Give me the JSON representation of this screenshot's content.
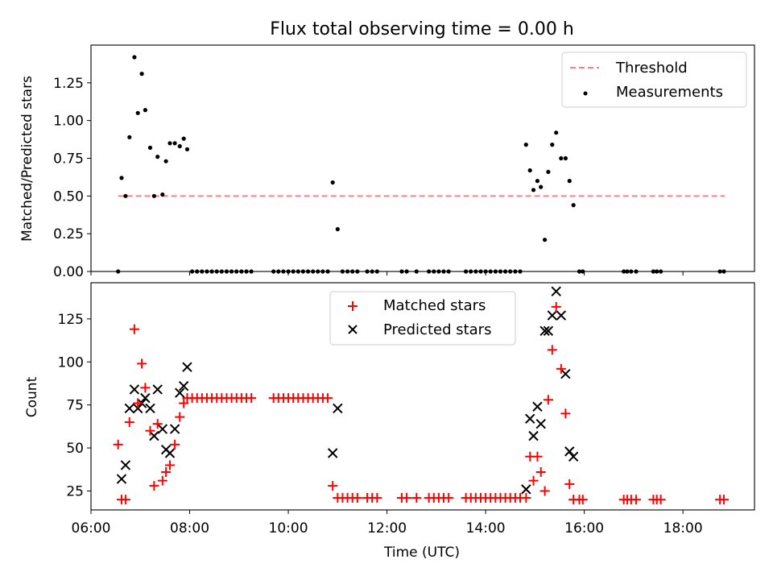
{
  "chart_data": [
    {
      "type": "scatter",
      "title": "Flux total observing time = 0.00 h",
      "xlabel": "",
      "ylabel": "Matched/Predicted stars",
      "xlim": [
        6.0,
        19.45
      ],
      "ylim": [
        0,
        1.5
      ],
      "yticks": [
        0.0,
        0.25,
        0.5,
        0.75,
        1.0,
        1.25
      ],
      "ytick_labels": [
        "0.00",
        "0.25",
        "0.50",
        "0.75",
        "1.00",
        "1.25"
      ],
      "xticks": [
        6,
        8,
        10,
        12,
        14,
        16,
        18
      ],
      "legend_position": "top-right",
      "threshold": {
        "name": "Threshold",
        "value": 0.5,
        "x": [
          6.55,
          18.85
        ],
        "color": "#ff7f7f",
        "style": "dashed"
      },
      "series": [
        {
          "name": "Measurements",
          "marker": "dot",
          "color": "#000000",
          "points": [
            [
              6.55,
              0.0
            ],
            [
              6.62,
              0.62
            ],
            [
              6.7,
              0.5
            ],
            [
              6.78,
              0.89
            ],
            [
              6.88,
              1.42
            ],
            [
              6.95,
              1.05
            ],
            [
              7.03,
              1.31
            ],
            [
              7.1,
              1.07
            ],
            [
              7.2,
              0.82
            ],
            [
              7.28,
              0.5
            ],
            [
              7.35,
              0.76
            ],
            [
              7.45,
              0.51
            ],
            [
              7.52,
              0.73
            ],
            [
              7.6,
              0.85
            ],
            [
              7.7,
              0.85
            ],
            [
              7.8,
              0.83
            ],
            [
              7.88,
              0.88
            ],
            [
              7.95,
              0.81
            ],
            [
              8.05,
              0.0
            ],
            [
              8.15,
              0.0
            ],
            [
              8.25,
              0.0
            ],
            [
              8.35,
              0.0
            ],
            [
              8.45,
              0.0
            ],
            [
              8.55,
              0.0
            ],
            [
              8.65,
              0.0
            ],
            [
              8.75,
              0.0
            ],
            [
              8.85,
              0.0
            ],
            [
              8.95,
              0.0
            ],
            [
              9.05,
              0.0
            ],
            [
              9.15,
              0.0
            ],
            [
              9.25,
              0.0
            ],
            [
              9.7,
              0.0
            ],
            [
              9.8,
              0.0
            ],
            [
              9.9,
              0.0
            ],
            [
              10.0,
              0.0
            ],
            [
              10.1,
              0.0
            ],
            [
              10.2,
              0.0
            ],
            [
              10.3,
              0.0
            ],
            [
              10.4,
              0.0
            ],
            [
              10.5,
              0.0
            ],
            [
              10.6,
              0.0
            ],
            [
              10.7,
              0.0
            ],
            [
              10.8,
              0.0
            ],
            [
              10.9,
              0.59
            ],
            [
              11.0,
              0.28
            ],
            [
              11.1,
              0.0
            ],
            [
              11.2,
              0.0
            ],
            [
              11.3,
              0.0
            ],
            [
              11.4,
              0.0
            ],
            [
              11.6,
              0.0
            ],
            [
              11.7,
              0.0
            ],
            [
              11.8,
              0.0
            ],
            [
              12.3,
              0.0
            ],
            [
              12.4,
              0.0
            ],
            [
              12.6,
              0.0
            ],
            [
              12.85,
              0.0
            ],
            [
              12.95,
              0.0
            ],
            [
              13.05,
              0.0
            ],
            [
              13.15,
              0.0
            ],
            [
              13.25,
              0.0
            ],
            [
              13.6,
              0.0
            ],
            [
              13.7,
              0.0
            ],
            [
              13.8,
              0.0
            ],
            [
              13.9,
              0.0
            ],
            [
              14.0,
              0.0
            ],
            [
              14.1,
              0.0
            ],
            [
              14.2,
              0.0
            ],
            [
              14.3,
              0.0
            ],
            [
              14.4,
              0.0
            ],
            [
              14.5,
              0.0
            ],
            [
              14.6,
              0.0
            ],
            [
              14.7,
              0.0
            ],
            [
              14.82,
              0.84
            ],
            [
              14.9,
              0.67
            ],
            [
              14.97,
              0.54
            ],
            [
              15.05,
              0.6
            ],
            [
              15.12,
              0.56
            ],
            [
              15.2,
              0.21
            ],
            [
              15.27,
              0.66
            ],
            [
              15.35,
              0.84
            ],
            [
              15.43,
              0.92
            ],
            [
              15.53,
              0.75
            ],
            [
              15.62,
              0.75
            ],
            [
              15.7,
              0.6
            ],
            [
              15.78,
              0.44
            ],
            [
              15.9,
              0.0
            ],
            [
              15.97,
              0.0
            ],
            [
              16.8,
              0.0
            ],
            [
              16.87,
              0.0
            ],
            [
              16.95,
              0.0
            ],
            [
              17.05,
              0.0
            ],
            [
              17.4,
              0.0
            ],
            [
              17.47,
              0.0
            ],
            [
              17.55,
              0.0
            ],
            [
              18.75,
              0.0
            ],
            [
              18.83,
              0.0
            ]
          ]
        }
      ]
    },
    {
      "type": "scatter",
      "title": "",
      "xlabel": "Time (UTC)",
      "ylabel": "Count",
      "xlim": [
        6.0,
        19.45
      ],
      "ylim": [
        14,
        146
      ],
      "yticks": [
        25,
        50,
        75,
        100,
        125
      ],
      "ytick_labels": [
        "25",
        "50",
        "75",
        "100",
        "125"
      ],
      "xticks": [
        6,
        8,
        10,
        12,
        14,
        16,
        18
      ],
      "xtick_labels": [
        "06:00",
        "08:00",
        "10:00",
        "12:00",
        "14:00",
        "16:00",
        "18:00"
      ],
      "legend_position": "top-center",
      "series": [
        {
          "name": "Matched stars",
          "marker": "plus",
          "color": "#ff0000",
          "points": [
            [
              6.55,
              52
            ],
            [
              6.62,
              20
            ],
            [
              6.7,
              20
            ],
            [
              6.78,
              65
            ],
            [
              6.88,
              119
            ],
            [
              6.95,
              76
            ],
            [
              7.03,
              99
            ],
            [
              7.1,
              85
            ],
            [
              7.2,
              60
            ],
            [
              7.28,
              28
            ],
            [
              7.35,
              64
            ],
            [
              7.45,
              31
            ],
            [
              7.52,
              36
            ],
            [
              7.6,
              40
            ],
            [
              7.7,
              52
            ],
            [
              7.8,
              68
            ],
            [
              7.88,
              76
            ],
            [
              7.95,
              79
            ],
            [
              8.05,
              79
            ],
            [
              8.15,
              79
            ],
            [
              8.25,
              79
            ],
            [
              8.35,
              79
            ],
            [
              8.45,
              79
            ],
            [
              8.55,
              79
            ],
            [
              8.65,
              79
            ],
            [
              8.75,
              79
            ],
            [
              8.85,
              79
            ],
            [
              8.95,
              79
            ],
            [
              9.05,
              79
            ],
            [
              9.15,
              79
            ],
            [
              9.25,
              79
            ],
            [
              9.7,
              79
            ],
            [
              9.8,
              79
            ],
            [
              9.9,
              79
            ],
            [
              10.0,
              79
            ],
            [
              10.1,
              79
            ],
            [
              10.2,
              79
            ],
            [
              10.3,
              79
            ],
            [
              10.4,
              79
            ],
            [
              10.5,
              79
            ],
            [
              10.6,
              79
            ],
            [
              10.7,
              79
            ],
            [
              10.8,
              79
            ],
            [
              10.9,
              28
            ],
            [
              11.0,
              21
            ],
            [
              11.1,
              21
            ],
            [
              11.2,
              21
            ],
            [
              11.3,
              21
            ],
            [
              11.4,
              21
            ],
            [
              11.6,
              21
            ],
            [
              11.7,
              21
            ],
            [
              11.8,
              21
            ],
            [
              12.3,
              21
            ],
            [
              12.4,
              21
            ],
            [
              12.6,
              21
            ],
            [
              12.85,
              21
            ],
            [
              12.95,
              21
            ],
            [
              13.05,
              21
            ],
            [
              13.15,
              21
            ],
            [
              13.25,
              21
            ],
            [
              13.6,
              21
            ],
            [
              13.7,
              21
            ],
            [
              13.8,
              21
            ],
            [
              13.9,
              21
            ],
            [
              14.0,
              21
            ],
            [
              14.1,
              21
            ],
            [
              14.2,
              21
            ],
            [
              14.3,
              21
            ],
            [
              14.4,
              21
            ],
            [
              14.5,
              21
            ],
            [
              14.6,
              21
            ],
            [
              14.7,
              21
            ],
            [
              14.82,
              21
            ],
            [
              14.9,
              45
            ],
            [
              14.97,
              31
            ],
            [
              15.05,
              45
            ],
            [
              15.12,
              36
            ],
            [
              15.2,
              25
            ],
            [
              15.27,
              78
            ],
            [
              15.35,
              107
            ],
            [
              15.43,
              132
            ],
            [
              15.53,
              96
            ],
            [
              15.62,
              70
            ],
            [
              15.7,
              29
            ],
            [
              15.78,
              20
            ],
            [
              15.9,
              20
            ],
            [
              15.97,
              20
            ],
            [
              16.8,
              20
            ],
            [
              16.87,
              20
            ],
            [
              16.95,
              20
            ],
            [
              17.05,
              20
            ],
            [
              17.4,
              20
            ],
            [
              17.47,
              20
            ],
            [
              17.55,
              20
            ],
            [
              18.75,
              20
            ],
            [
              18.83,
              20
            ]
          ]
        },
        {
          "name": "Predicted stars",
          "marker": "x",
          "color": "#000000",
          "points": [
            [
              6.62,
              32
            ],
            [
              6.7,
              40
            ],
            [
              6.78,
              73
            ],
            [
              6.88,
              84
            ],
            [
              6.95,
              73
            ],
            [
              7.03,
              76
            ],
            [
              7.1,
              79
            ],
            [
              7.2,
              73
            ],
            [
              7.28,
              57
            ],
            [
              7.35,
              84
            ],
            [
              7.45,
              61
            ],
            [
              7.52,
              49
            ],
            [
              7.6,
              47
            ],
            [
              7.7,
              61
            ],
            [
              7.8,
              82
            ],
            [
              7.88,
              86
            ],
            [
              7.95,
              97
            ],
            [
              10.9,
              47
            ],
            [
              11.0,
              73
            ],
            [
              14.82,
              26
            ],
            [
              14.9,
              67
            ],
            [
              14.97,
              57
            ],
            [
              15.05,
              74
            ],
            [
              15.12,
              64
            ],
            [
              15.2,
              118
            ],
            [
              15.27,
              118
            ],
            [
              15.35,
              127
            ],
            [
              15.43,
              141
            ],
            [
              15.53,
              127
            ],
            [
              15.62,
              93
            ],
            [
              15.7,
              48
            ],
            [
              15.78,
              45
            ]
          ]
        }
      ]
    }
  ]
}
